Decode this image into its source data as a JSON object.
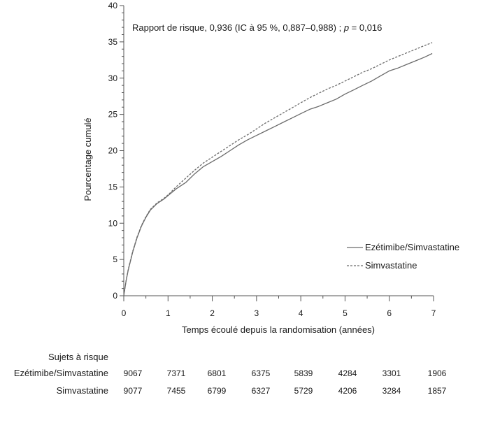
{
  "chart_data": {
    "type": "line",
    "title": "",
    "annotation": {
      "prefix": "Rapport de risque, 0,936 (IC à 95 %, 0,887–0,988) ; ",
      "p_symbol": "p",
      "suffix": " = 0,016"
    },
    "xlabel": "Temps écoulé depuis la randomisation (années)",
    "ylabel": "Pourcentage cumulé",
    "xlim": [
      0,
      7
    ],
    "ylim": [
      0,
      40
    ],
    "x_ticks": [
      0,
      1,
      2,
      3,
      4,
      5,
      6,
      7
    ],
    "x_minor_step": 0.5,
    "y_ticks": [
      0,
      5,
      10,
      15,
      20,
      25,
      30,
      35,
      40
    ],
    "y_minor_step": 1,
    "grid": false,
    "legend_position": "right",
    "series": [
      {
        "name": "Ezétimibe/Simvastatine",
        "style": "solid",
        "color": "#6b6b6b",
        "x": [
          0,
          0.05,
          0.1,
          0.2,
          0.3,
          0.4,
          0.5,
          0.6,
          0.75,
          0.9,
          1.0,
          1.2,
          1.4,
          1.6,
          1.8,
          2.0,
          2.2,
          2.4,
          2.6,
          2.8,
          3.0,
          3.2,
          3.4,
          3.6,
          3.8,
          4.0,
          4.2,
          4.4,
          4.6,
          4.8,
          5.0,
          5.2,
          5.4,
          5.6,
          5.8,
          6.0,
          6.2,
          6.4,
          6.6,
          6.8,
          6.97
        ],
        "y": [
          0,
          2.0,
          3.5,
          6.0,
          8.0,
          9.6,
          10.8,
          11.8,
          12.7,
          13.3,
          13.8,
          14.8,
          15.6,
          16.8,
          17.8,
          18.5,
          19.2,
          20.0,
          20.8,
          21.5,
          22.1,
          22.7,
          23.3,
          23.9,
          24.5,
          25.1,
          25.7,
          26.1,
          26.6,
          27.1,
          27.8,
          28.4,
          29.0,
          29.6,
          30.3,
          31.0,
          31.4,
          31.9,
          32.4,
          32.9,
          33.4
        ]
      },
      {
        "name": "Simvastatine",
        "style": "dashed",
        "color": "#6b6b6b",
        "x": [
          0,
          0.05,
          0.1,
          0.2,
          0.3,
          0.4,
          0.5,
          0.6,
          0.75,
          0.9,
          1.0,
          1.2,
          1.4,
          1.6,
          1.8,
          2.0,
          2.2,
          2.4,
          2.6,
          2.8,
          3.0,
          3.2,
          3.4,
          3.6,
          3.8,
          4.0,
          4.2,
          4.4,
          4.6,
          4.8,
          5.0,
          5.2,
          5.4,
          5.6,
          5.8,
          6.0,
          6.2,
          6.4,
          6.6,
          6.8,
          6.97
        ],
        "y": [
          0,
          2.0,
          3.6,
          6.1,
          8.1,
          9.7,
          10.9,
          11.9,
          12.8,
          13.4,
          13.9,
          15.1,
          16.2,
          17.3,
          18.3,
          19.1,
          19.9,
          20.7,
          21.5,
          22.2,
          23.0,
          23.8,
          24.5,
          25.2,
          25.9,
          26.6,
          27.3,
          27.9,
          28.5,
          29.0,
          29.6,
          30.2,
          30.8,
          31.3,
          31.9,
          32.5,
          33.0,
          33.5,
          34.0,
          34.5,
          34.9
        ]
      }
    ],
    "risk_table": {
      "header": "Sujets à risque",
      "rows": [
        {
          "label": "Ezétimibe/Simvastatine",
          "values": [
            9067,
            7371,
            6801,
            6375,
            5839,
            4284,
            3301,
            1906
          ]
        },
        {
          "label": "Simvastatine",
          "values": [
            9077,
            7455,
            6799,
            6327,
            5729,
            4206,
            3284,
            1857
          ]
        }
      ]
    }
  }
}
